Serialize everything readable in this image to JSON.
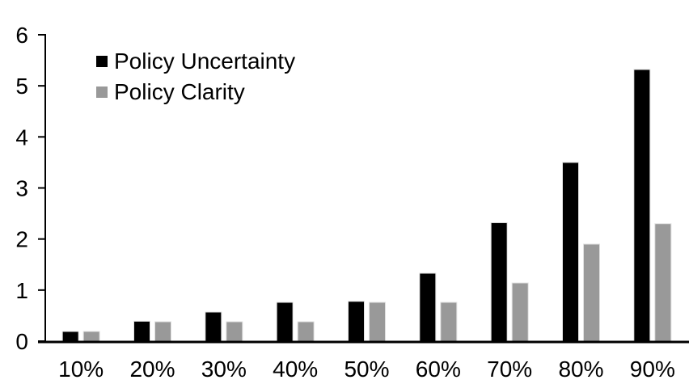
{
  "chart_data": {
    "type": "bar",
    "title": "",
    "xlabel": "",
    "ylabel": "",
    "categories": [
      "10%",
      "20%",
      "30%",
      "40%",
      "50%",
      "60%",
      "70%",
      "80%",
      "90%"
    ],
    "series": [
      {
        "name": "Policy Uncertainty",
        "color": "#000000",
        "values": [
          0.19,
          0.39,
          0.57,
          0.76,
          0.78,
          1.33,
          2.32,
          3.5,
          5.32
        ]
      },
      {
        "name": "Policy Clarity",
        "color": "#999999",
        "values": [
          0.19,
          0.38,
          0.38,
          0.38,
          0.76,
          0.76,
          1.14,
          1.9,
          2.3
        ]
      }
    ],
    "ylim": [
      0,
      6
    ],
    "yticks": [
      0,
      1,
      2,
      3,
      4,
      5,
      6
    ],
    "grid": false,
    "legend_position": "top-left-inside",
    "bar_outline_color": "#e0e0e0",
    "axis_color": "#000000",
    "background_color": "#ffffff"
  }
}
